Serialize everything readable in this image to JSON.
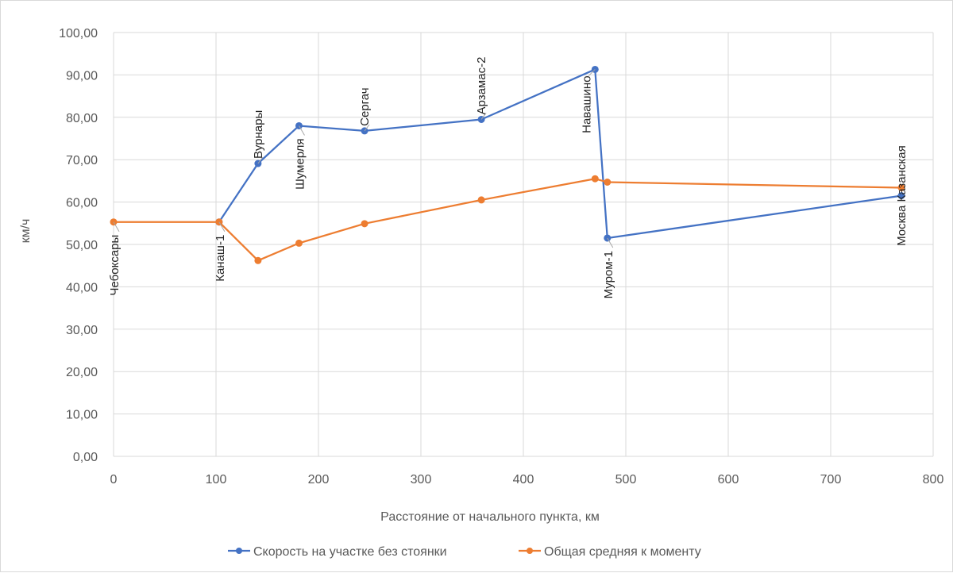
{
  "chart_data": {
    "type": "line",
    "title": "",
    "xlabel": "Расстояние от начального пункта, км",
    "ylabel": "км/ч",
    "xlim": [
      0,
      800
    ],
    "ylim": [
      0,
      100
    ],
    "x_ticks": [
      0,
      100,
      200,
      300,
      400,
      500,
      600,
      700,
      800
    ],
    "y_ticks": [
      0,
      10,
      20,
      30,
      40,
      50,
      60,
      70,
      80,
      90,
      100
    ],
    "y_tick_labels": [
      "0,00",
      "10,00",
      "20,00",
      "30,00",
      "40,00",
      "50,00",
      "60,00",
      "70,00",
      "80,00",
      "90,00",
      "100,00"
    ],
    "grid": true,
    "legend_position": "bottom",
    "series": [
      {
        "name": "Скорость на участке без стоянки",
        "color": "#4472c4",
        "points": [
          {
            "x": 103,
            "y": 55.3
          },
          {
            "x": 141,
            "y": 69.1
          },
          {
            "x": 181,
            "y": 78.0
          },
          {
            "x": 245,
            "y": 76.8
          },
          {
            "x": 359,
            "y": 79.5
          },
          {
            "x": 470,
            "y": 91.3
          },
          {
            "x": 482,
            "y": 51.5
          },
          {
            "x": 769,
            "y": 61.5
          }
        ]
      },
      {
        "name": "Общая средняя к моменту",
        "color": "#ed7d31",
        "points": [
          {
            "x": 0,
            "y": 55.3
          },
          {
            "x": 103,
            "y": 55.3
          },
          {
            "x": 141,
            "y": 46.2
          },
          {
            "x": 181,
            "y": 50.3
          },
          {
            "x": 245,
            "y": 54.9
          },
          {
            "x": 359,
            "y": 60.5
          },
          {
            "x": 470,
            "y": 65.5
          },
          {
            "x": 482,
            "y": 64.7
          },
          {
            "x": 769,
            "y": 63.4
          }
        ]
      }
    ],
    "annotations": [
      {
        "text": "Чебоксары",
        "x": 0,
        "y": 55.3,
        "side": "below"
      },
      {
        "text": "Канаш-1",
        "x": 103,
        "y": 55.3,
        "side": "below"
      },
      {
        "text": "Вурнары",
        "x": 141,
        "y": 69.1,
        "side": "above"
      },
      {
        "text": "Шумерля",
        "x": 181,
        "y": 78.0,
        "side": "below"
      },
      {
        "text": "Сергач",
        "x": 245,
        "y": 76.8,
        "side": "above"
      },
      {
        "text": "Арзамас-2",
        "x": 359,
        "y": 79.5,
        "side": "above"
      },
      {
        "text": "Навашино",
        "x": 470,
        "y": 91.3,
        "side": "below-left"
      },
      {
        "text": "Муром-1",
        "x": 482,
        "y": 51.5,
        "side": "below"
      },
      {
        "text": "Москва Казанская",
        "x": 769,
        "y": 61.5,
        "side": "center"
      }
    ]
  }
}
